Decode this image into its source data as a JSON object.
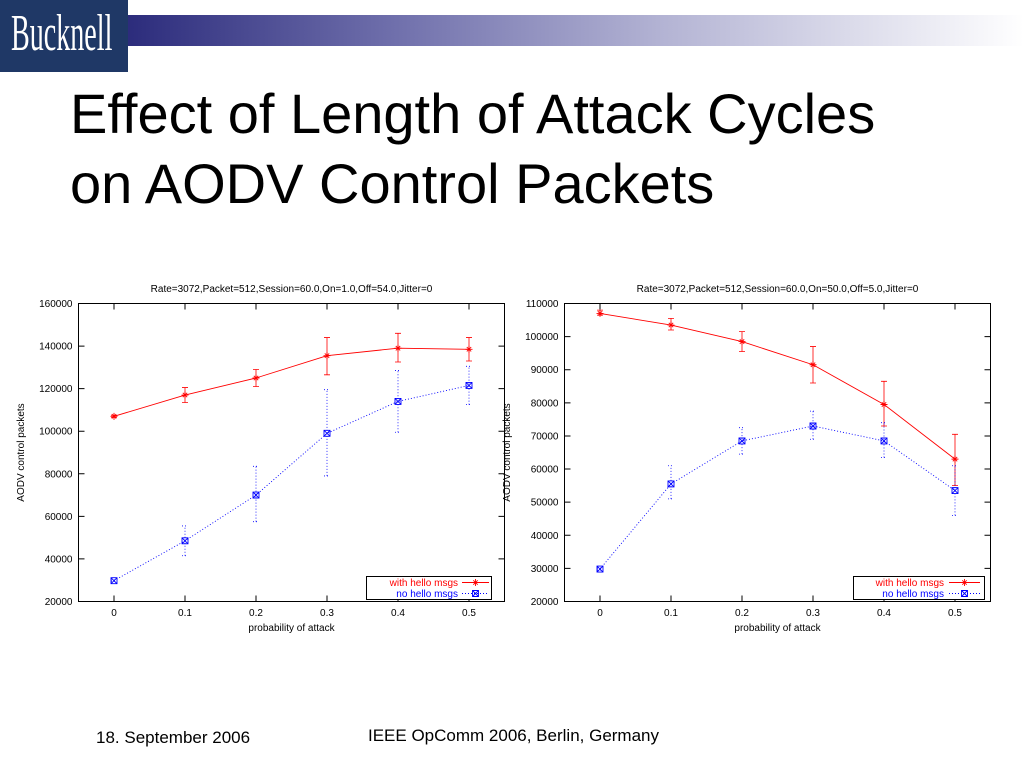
{
  "header": {
    "logo_text": "Bucknell"
  },
  "slide": {
    "title_line1": "Effect of Length of Attack Cycles",
    "title_line2": "on AODV Control Packets"
  },
  "footer": {
    "date": "18. September 2006",
    "event": "IEEE OpComm 2006, Berlin, Germany"
  },
  "colors": {
    "logo_background": "#1f3866",
    "band_start": "#2c2c7c",
    "band_mid": "#7070ac",
    "band_end": "#ffffff",
    "text": "#000000"
  },
  "chart_data": [
    {
      "type": "line",
      "title": "Rate=3072,Packet=512,Session=60.0,On=1.0,Off=54.0,Jitter=0",
      "xlabel": "probability of attack",
      "ylabel": "AODV control packets",
      "x": [
        0,
        0.1,
        0.2,
        0.3,
        0.4,
        0.5
      ],
      "x_ticks": [
        "0",
        "0.1",
        "0.2",
        "0.3",
        "0.4",
        "0.5"
      ],
      "xlim": [
        -0.05,
        0.55
      ],
      "ylim": [
        20000,
        160000
      ],
      "y_ticks": [
        20000,
        40000,
        60000,
        80000,
        100000,
        120000,
        140000,
        160000
      ],
      "grid": false,
      "legend": "bottom-right",
      "series": [
        {
          "name": "with hello msgs",
          "color": "#ff0000",
          "values": [
            107000,
            117000,
            125000,
            135500,
            139000,
            138500
          ],
          "err_low": [
            106500,
            113500,
            121000,
            126500,
            132500,
            133000
          ],
          "err_high": [
            107500,
            120500,
            129000,
            144000,
            146000,
            144000
          ]
        },
        {
          "name": "no hello msgs",
          "color": "#0000ff",
          "values": [
            29800,
            48500,
            70000,
            99000,
            114000,
            121500
          ],
          "err_low": [
            29500,
            41500,
            57500,
            79000,
            99500,
            112500
          ],
          "err_high": [
            30100,
            55500,
            83500,
            119500,
            128500,
            130500
          ]
        }
      ]
    },
    {
      "type": "line",
      "title": "Rate=3072,Packet=512,Session=60.0,On=50.0,Off=5.0,Jitter=0",
      "xlabel": "probability of attack",
      "ylabel": "AODV control packets",
      "x": [
        0,
        0.1,
        0.2,
        0.3,
        0.4,
        0.5
      ],
      "x_ticks": [
        "0",
        "0.1",
        "0.2",
        "0.3",
        "0.4",
        "0.5"
      ],
      "xlim": [
        -0.05,
        0.55
      ],
      "ylim": [
        20000,
        110000
      ],
      "y_ticks": [
        20000,
        30000,
        40000,
        50000,
        60000,
        70000,
        80000,
        90000,
        100000,
        110000
      ],
      "grid": false,
      "legend": "bottom-right",
      "series": [
        {
          "name": "with hello msgs",
          "color": "#ff0000",
          "values": [
            107000,
            103500,
            98500,
            91500,
            79500,
            63000
          ],
          "err_low": [
            106500,
            102000,
            95500,
            86000,
            73000,
            55000
          ],
          "err_high": [
            108000,
            105500,
            101500,
            97000,
            86500,
            70500
          ]
        },
        {
          "name": "no hello msgs",
          "color": "#0000ff",
          "values": [
            29800,
            55500,
            68500,
            73000,
            68500,
            53500
          ],
          "err_low": [
            29500,
            51000,
            64500,
            69000,
            63500,
            46000
          ],
          "err_high": [
            30100,
            61000,
            72500,
            77500,
            74000,
            61000
          ]
        }
      ]
    }
  ]
}
